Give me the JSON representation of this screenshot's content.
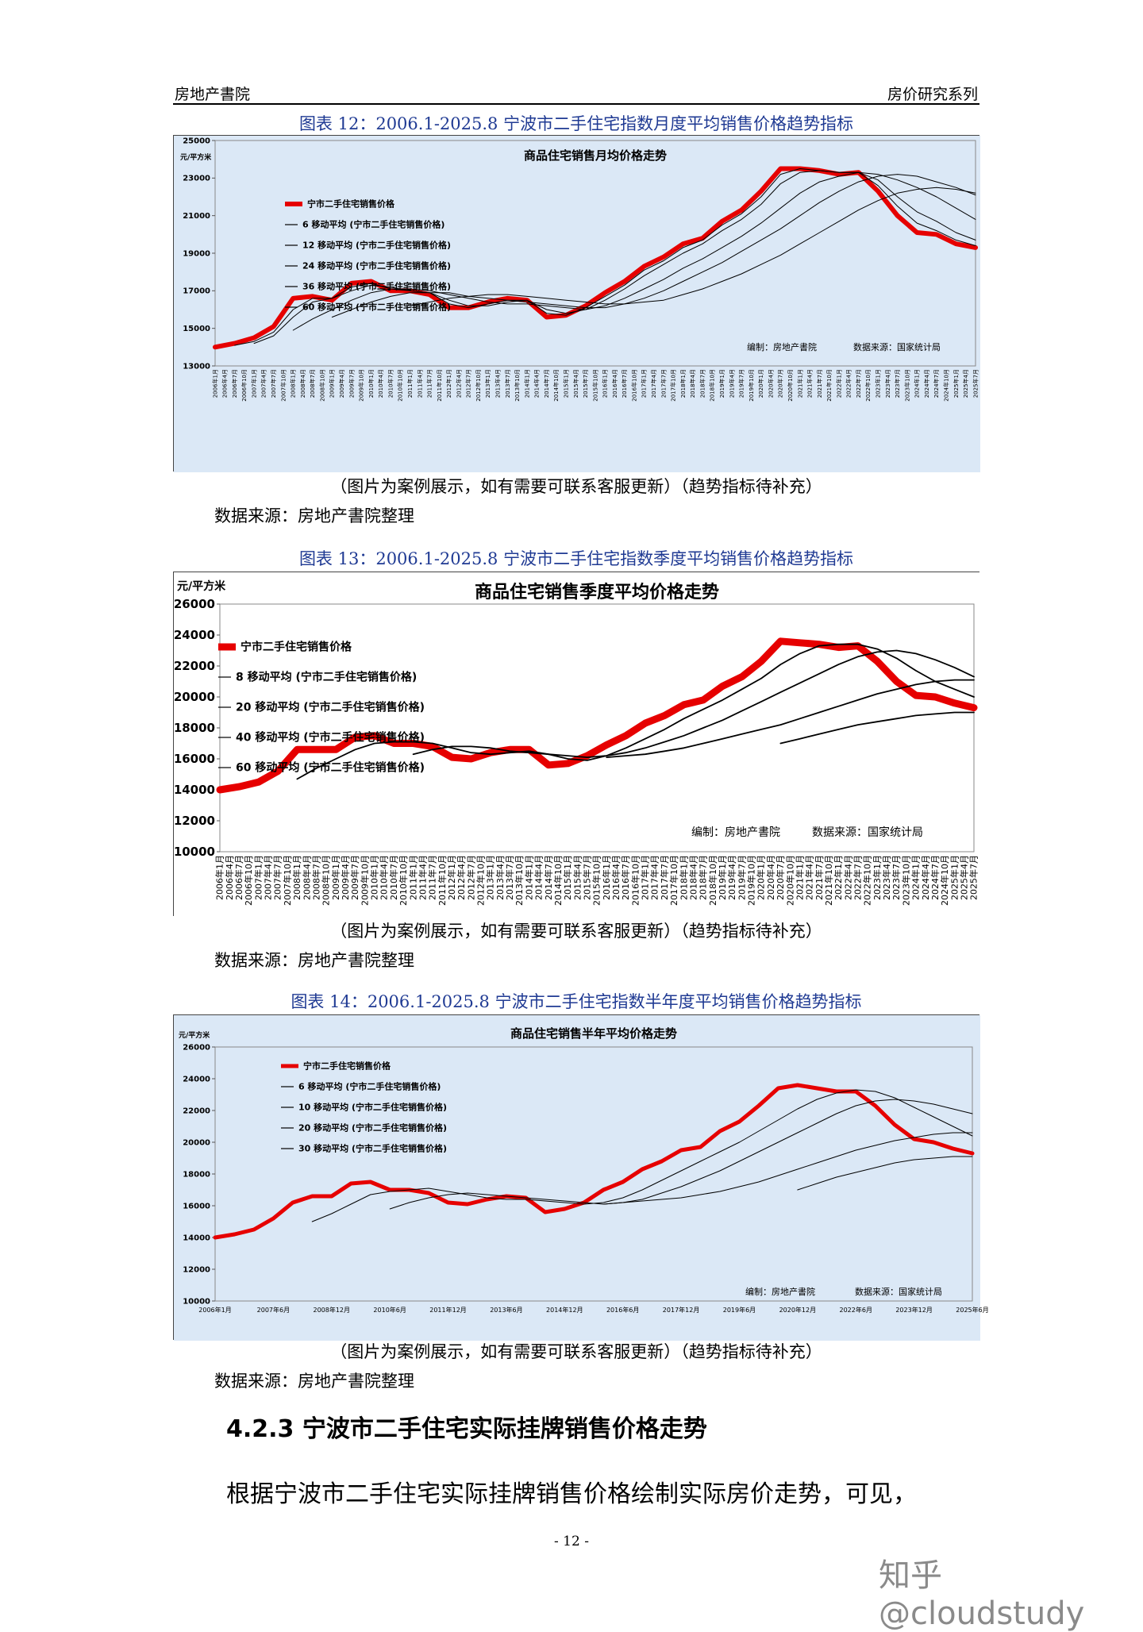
{
  "header": {
    "left": "房地产書院",
    "right": "房价研究系列"
  },
  "figures": [
    {
      "caption": "图表 12：2006.1-2025.8 宁波市二手住宅指数月度平均销售价格趋势指标",
      "note": "（图片为案例展示，如有需要可联系客服更新）（趋势指标待补充）",
      "source": "数据来源：房地产書院整理"
    },
    {
      "caption": "图表 13：2006.1-2025.8 宁波市二手住宅指数季度平均销售价格趋势指标",
      "note": "（图片为案例展示，如有需要可联系客服更新）（趋势指标待补充）",
      "source": "数据来源：房地产書院整理"
    },
    {
      "caption": "图表 14：2006.1-2025.8 宁波市二手住宅指数半年度平均销售价格趋势指标",
      "note": "（图片为案例展示，如有需要可联系客服更新）（趋势指标待补充）",
      "source": "数据来源：房地产書院整理"
    }
  ],
  "section_heading": "4.2.3 宁波市二手住宅实际挂牌销售价格走势",
  "body_text": "根据宁波市二手住宅实际挂牌销售价格绘制实际房价走势，可见，",
  "page_number": "- 12 -",
  "watermark": "知乎 @cloudstudy",
  "colors": {
    "main_series": "#e60000",
    "ma_series": "#000000",
    "plot_bg_blue": "#dbe8f6",
    "caption_blue": "#1f3a93"
  },
  "chart_data": [
    {
      "type": "line",
      "title": "商品住宅销售月均价格走势",
      "ylabel": "元/平方米",
      "ylim": [
        13000,
        25000
      ],
      "yticks": [
        13000,
        15000,
        17000,
        19000,
        21000,
        23000,
        25000
      ],
      "x": [
        2006,
        2006.5,
        2007,
        2007.5,
        2008,
        2008.5,
        2009,
        2009.5,
        2010,
        2010.5,
        2011,
        2011.5,
        2012,
        2012.5,
        2013,
        2013.5,
        2014,
        2014.5,
        2015,
        2015.5,
        2016,
        2016.5,
        2017,
        2017.5,
        2018,
        2018.5,
        2019,
        2019.5,
        2020,
        2020.5,
        2021,
        2021.5,
        2022,
        2022.5,
        2023,
        2023.5,
        2024,
        2024.5,
        2025,
        2025.5
      ],
      "xlabel_every": "月",
      "legend_position": "top-left",
      "legend": [
        "宁市二手住宅销售价格",
        "6 移动平均 (宁市二手住宅销售价格)",
        "12 移动平均 (宁市二手住宅销售价格)",
        "24 移动平均 (宁市二手住宅销售价格)",
        "36 移动平均 (宁市二手住宅销售价格)",
        "60 移动平均 (宁市二手住宅销售价格)"
      ],
      "series": [
        {
          "name": "宁市二手住宅销售价格",
          "values": [
            14000,
            14200,
            14500,
            15100,
            16600,
            16700,
            16500,
            17400,
            17500,
            17000,
            17000,
            16800,
            16100,
            16100,
            16400,
            16600,
            16500,
            15600,
            15700,
            16200,
            16900,
            17500,
            18300,
            18800,
            19500,
            19800,
            20700,
            21300,
            22300,
            23500,
            23500,
            23400,
            23200,
            23300,
            22300,
            21000,
            20100,
            20000,
            19500,
            19300
          ]
        },
        {
          "name": "6 移动平均 (宁市二手住宅销售价格)",
          "values": [
            null,
            14100,
            14300,
            14800,
            16000,
            16600,
            16600,
            17200,
            17400,
            17100,
            17000,
            16900,
            16300,
            16100,
            16300,
            16500,
            16500,
            15800,
            15700,
            16100,
            16700,
            17300,
            18100,
            18600,
            19300,
            19700,
            20500,
            21100,
            22000,
            23200,
            23500,
            23400,
            23300,
            23300,
            22600,
            21500,
            20600,
            20200,
            19700,
            19400
          ]
        },
        {
          "name": "12 移动平均 (宁市二手住宅销售价格)",
          "values": [
            null,
            null,
            14200,
            14600,
            15600,
            16400,
            16600,
            17000,
            17300,
            17200,
            17000,
            16900,
            16500,
            16200,
            16200,
            16400,
            16500,
            16000,
            15800,
            16000,
            16500,
            17100,
            17800,
            18400,
            19000,
            19500,
            20200,
            20800,
            21600,
            22700,
            23300,
            23400,
            23300,
            23300,
            22900,
            22000,
            21200,
            20700,
            20100,
            19700
          ]
        },
        {
          "name": "24 移动平均 (宁市二手住宅销售价格)",
          "values": [
            null,
            null,
            null,
            null,
            14900,
            15500,
            16000,
            16500,
            16900,
            17100,
            17100,
            17000,
            16800,
            16600,
            16400,
            16300,
            16300,
            16200,
            16100,
            16000,
            16200,
            16600,
            17100,
            17600,
            18200,
            18700,
            19300,
            19900,
            20600,
            21400,
            22200,
            22800,
            23100,
            23300,
            23200,
            22900,
            22500,
            22000,
            21400,
            20800
          ]
        },
        {
          "name": "36 移动平均 (宁市二手住宅销售价格)",
          "values": [
            null,
            null,
            null,
            null,
            null,
            null,
            15600,
            16000,
            16400,
            16700,
            16900,
            16900,
            16900,
            16700,
            16600,
            16500,
            16400,
            16300,
            16200,
            16100,
            16100,
            16300,
            16600,
            17000,
            17500,
            18000,
            18500,
            19100,
            19700,
            20300,
            21000,
            21700,
            22300,
            22800,
            23100,
            23200,
            23100,
            22800,
            22500,
            22100
          ]
        },
        {
          "name": "60 移动平均 (宁市二手住宅销售价格)",
          "values": [
            null,
            null,
            null,
            null,
            null,
            null,
            null,
            null,
            null,
            null,
            16200,
            16400,
            16600,
            16700,
            16800,
            16800,
            16700,
            16600,
            16500,
            16400,
            16300,
            16300,
            16400,
            16500,
            16800,
            17100,
            17500,
            17900,
            18400,
            18900,
            19500,
            20100,
            20700,
            21300,
            21800,
            22200,
            22400,
            22500,
            22400,
            22200
          ]
        }
      ],
      "annotations": [
        "编制：房地产書院",
        "数据来源：国家统计局"
      ]
    },
    {
      "type": "line",
      "title": "商品住宅销售季度平均价格走势",
      "ylabel": "元/平方米",
      "ylim": [
        10000,
        26000
      ],
      "yticks": [
        10000,
        12000,
        14000,
        16000,
        18000,
        20000,
        22000,
        24000,
        26000
      ],
      "x": [
        2006,
        2006.5,
        2007,
        2007.5,
        2008,
        2008.5,
        2009,
        2009.5,
        2010,
        2010.5,
        2011,
        2011.5,
        2012,
        2012.5,
        2013,
        2013.5,
        2014,
        2014.5,
        2015,
        2015.5,
        2016,
        2016.5,
        2017,
        2017.5,
        2018,
        2018.5,
        2019,
        2019.5,
        2020,
        2020.5,
        2021,
        2021.5,
        2022,
        2022.5,
        2023,
        2023.5,
        2024,
        2024.5,
        2025,
        2025.5
      ],
      "legend_position": "top-left",
      "legend": [
        "宁市二手住宅销售价格",
        "8 移动平均 (宁市二手住宅销售价格)",
        "20 移动平均 (宁市二手住宅销售价格)",
        "40 移动平均 (宁市二手住宅销售价格)",
        "60 移动平均 (宁市二手住宅销售价格)"
      ],
      "series": [
        {
          "name": "宁市二手住宅销售价格",
          "values": [
            14000,
            14200,
            14500,
            15200,
            16600,
            16600,
            16600,
            17400,
            17500,
            17000,
            17000,
            16800,
            16100,
            16000,
            16400,
            16600,
            16600,
            15600,
            15700,
            16200,
            16900,
            17500,
            18300,
            18800,
            19500,
            19800,
            20700,
            21300,
            22300,
            23600,
            23500,
            23400,
            23200,
            23300,
            22300,
            21000,
            20100,
            20000,
            19600,
            19300
          ]
        },
        {
          "name": "8 移动平均 (宁市二手住宅销售价格)",
          "values": [
            null,
            null,
            null,
            null,
            14700,
            15400,
            16000,
            16600,
            17000,
            17100,
            17100,
            17000,
            16700,
            16400,
            16300,
            16400,
            16500,
            16300,
            16000,
            15900,
            16200,
            16700,
            17300,
            17900,
            18600,
            19200,
            19800,
            20500,
            21200,
            22100,
            22800,
            23300,
            23400,
            23400,
            23100,
            22500,
            21700,
            21000,
            20500,
            20000
          ]
        },
        {
          "name": "20 移动平均 (宁市二手住宅销售价格)",
          "values": [
            null,
            null,
            null,
            null,
            null,
            null,
            null,
            null,
            null,
            null,
            16300,
            16600,
            16800,
            16800,
            16700,
            16500,
            16400,
            16300,
            16200,
            16100,
            16200,
            16400,
            16700,
            17100,
            17500,
            18000,
            18500,
            19100,
            19700,
            20300,
            20900,
            21500,
            22100,
            22600,
            22900,
            23000,
            22800,
            22400,
            21900,
            21300
          ]
        },
        {
          "name": "40 移动平均 (宁市二手住宅销售价格)",
          "values": [
            null,
            null,
            null,
            null,
            null,
            null,
            null,
            null,
            null,
            null,
            null,
            null,
            null,
            null,
            null,
            null,
            null,
            null,
            null,
            null,
            16100,
            16200,
            16300,
            16500,
            16700,
            17000,
            17300,
            17600,
            17900,
            18200,
            18600,
            19000,
            19400,
            19800,
            20200,
            20500,
            20800,
            21000,
            21100,
            21100
          ]
        },
        {
          "name": "60 移动平均 (宁市二手住宅销售价格)",
          "values": [
            null,
            null,
            null,
            null,
            null,
            null,
            null,
            null,
            null,
            null,
            null,
            null,
            null,
            null,
            null,
            null,
            null,
            null,
            null,
            null,
            null,
            null,
            null,
            null,
            null,
            null,
            null,
            null,
            null,
            17000,
            17300,
            17600,
            17900,
            18200,
            18400,
            18600,
            18800,
            18900,
            19000,
            19000
          ]
        }
      ],
      "annotations": [
        "编制：房地产書院",
        "数据来源：国家统计局"
      ]
    },
    {
      "type": "line",
      "title": "商品住宅销售半年平均价格走势",
      "ylabel": "元/平方米",
      "ylim": [
        10000,
        26000
      ],
      "yticks": [
        10000,
        12000,
        14000,
        16000,
        18000,
        20000,
        22000,
        24000,
        26000
      ],
      "categories": [
        "2006年1月",
        "2007年6月",
        "2008年12月",
        "2010年6月",
        "2011年12月",
        "2013年6月",
        "2014年12月",
        "2016年6月",
        "2017年12月",
        "2019年6月",
        "2020年12月",
        "2022年6月",
        "2023年12月",
        "2025年6月"
      ],
      "x": [
        2006,
        2006.5,
        2007,
        2007.5,
        2008,
        2008.5,
        2009,
        2009.5,
        2010,
        2010.5,
        2011,
        2011.5,
        2012,
        2012.5,
        2013,
        2013.5,
        2014,
        2014.5,
        2015,
        2015.5,
        2016,
        2016.5,
        2017,
        2017.5,
        2018,
        2018.5,
        2019,
        2019.5,
        2020,
        2020.5,
        2021,
        2021.5,
        2022,
        2022.5,
        2023,
        2023.5,
        2024,
        2024.5,
        2025,
        2025.5
      ],
      "legend_position": "top-left",
      "legend": [
        "宁市二手住宅销售价格",
        "6 移动平均 (宁市二手住宅销售价格)",
        "10 移动平均 (宁市二手住宅销售价格)",
        "20 移动平均 (宁市二手住宅销售价格)",
        "30 移动平均 (宁市二手住宅销售价格)"
      ],
      "series": [
        {
          "name": "宁市二手住宅销售价格",
          "values": [
            14000,
            14200,
            14500,
            15200,
            16200,
            16600,
            16600,
            17400,
            17500,
            17000,
            17000,
            16800,
            16200,
            16100,
            16400,
            16600,
            16500,
            15600,
            15800,
            16200,
            17000,
            17500,
            18300,
            18800,
            19500,
            19700,
            20700,
            21300,
            22300,
            23400,
            23600,
            23400,
            23200,
            23200,
            22300,
            21100,
            20200,
            20000,
            19600,
            19300
          ]
        },
        {
          "name": "6 移动平均 (宁市二手住宅销售价格)",
          "values": [
            null,
            null,
            null,
            null,
            null,
            15000,
            15500,
            16100,
            16700,
            16900,
            17000,
            17100,
            16900,
            16700,
            16500,
            16400,
            16400,
            16300,
            16200,
            16100,
            16200,
            16500,
            17000,
            17600,
            18200,
            18800,
            19400,
            20000,
            20700,
            21400,
            22100,
            22700,
            23100,
            23300,
            23200,
            22800,
            22200,
            21600,
            21000,
            20400
          ]
        },
        {
          "name": "10 移动平均 (宁市二手住宅销售价格)",
          "values": [
            null,
            null,
            null,
            null,
            null,
            null,
            null,
            null,
            null,
            15800,
            16200,
            16500,
            16700,
            16800,
            16700,
            16600,
            16500,
            16400,
            16300,
            16200,
            16100,
            16200,
            16400,
            16800,
            17200,
            17700,
            18200,
            18800,
            19400,
            20000,
            20600,
            21200,
            21800,
            22300,
            22600,
            22700,
            22600,
            22400,
            22100,
            21800
          ]
        },
        {
          "name": "20 移动平均 (宁市二手住宅销售价格)",
          "values": [
            null,
            null,
            null,
            null,
            null,
            null,
            null,
            null,
            null,
            null,
            null,
            null,
            null,
            null,
            null,
            null,
            null,
            null,
            null,
            null,
            16100,
            16200,
            16300,
            16400,
            16500,
            16700,
            16900,
            17200,
            17500,
            17900,
            18300,
            18700,
            19100,
            19500,
            19800,
            20100,
            20300,
            20500,
            20600,
            20600
          ]
        },
        {
          "name": "30 移动平均 (宁市二手住宅销售价格)",
          "values": [
            null,
            null,
            null,
            null,
            null,
            null,
            null,
            null,
            null,
            null,
            null,
            null,
            null,
            null,
            null,
            null,
            null,
            null,
            null,
            null,
            null,
            null,
            null,
            null,
            null,
            null,
            null,
            null,
            null,
            null,
            17000,
            17400,
            17800,
            18100,
            18400,
            18700,
            18900,
            19000,
            19100,
            19100
          ]
        }
      ],
      "annotations": [
        "编制：房地产書院",
        "数据来源：国家统计局"
      ]
    }
  ]
}
